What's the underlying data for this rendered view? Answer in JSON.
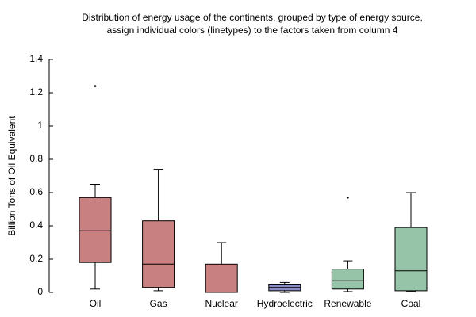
{
  "chart_data": {
    "type": "box",
    "title": [
      "Distribution of energy usage of the continents, grouped by type of energy source,",
      "assign individual colors (linetypes) to the factors taken from column 4"
    ],
    "ylabel": "Billion Tons of Oil Equivalent",
    "categories": [
      "Oil",
      "Gas",
      "Nuclear",
      "Hydroelectric",
      "Renewable",
      "Coal"
    ],
    "colors": [
      "#c98080",
      "#c98080",
      "#c98080",
      "#8a8ac4",
      "#96c4a8",
      "#96c4a8"
    ],
    "boxes": [
      {
        "low": 0.02,
        "q1": 0.18,
        "median": 0.37,
        "q3": 0.57,
        "high": 0.65,
        "outliers": [
          1.24
        ]
      },
      {
        "low": 0.01,
        "q1": 0.03,
        "median": 0.17,
        "q3": 0.43,
        "high": 0.74,
        "outliers": []
      },
      {
        "low": 0,
        "q1": 0,
        "median": 0,
        "q3": 0.17,
        "high": 0.3,
        "outliers": []
      },
      {
        "low": 0,
        "q1": 0.01,
        "median": 0.03,
        "q3": 0.05,
        "high": 0.06,
        "outliers": []
      },
      {
        "low": 0.005,
        "q1": 0.02,
        "median": 0.07,
        "q3": 0.14,
        "high": 0.19,
        "outliers": [
          0.57
        ]
      },
      {
        "low": 0.005,
        "q1": 0.01,
        "median": 0.13,
        "q3": 0.39,
        "high": 0.6,
        "outliers": []
      }
    ],
    "ylim": [
      0,
      1.4
    ],
    "yticks": [
      0,
      0.2,
      0.4,
      0.6,
      0.8,
      1,
      1.2,
      1.4
    ]
  }
}
